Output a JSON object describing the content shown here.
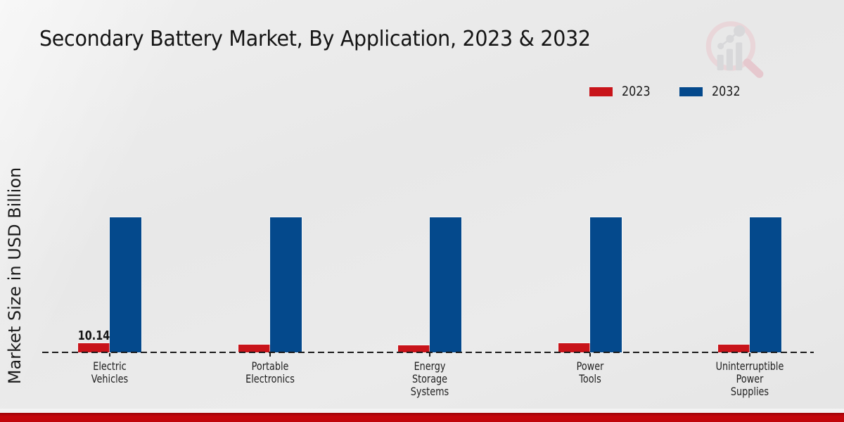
{
  "title": "Secondary Battery Market, By Application, 2023 & 2032",
  "y_axis_label": "Market Size in USD Billion",
  "legend": {
    "position": "top-right",
    "items": [
      {
        "label": "2023",
        "color": "#c8141a"
      },
      {
        "label": "2032",
        "color": "#04498c"
      }
    ]
  },
  "chart_data": {
    "type": "bar",
    "title": "Secondary Battery Market, By Application, 2023 & 2032",
    "xlabel": "",
    "ylabel": "Market Size in USD Billion",
    "categories": [
      "Electric Vehicles",
      "Portable Electronics",
      "Energy Storage Systems",
      "Power Tools",
      "Uninterruptible Power Supplies"
    ],
    "category_lines": [
      [
        "Electric",
        "Vehicles"
      ],
      [
        "Portable",
        "Electronics"
      ],
      [
        "Energy",
        "Storage",
        "Systems"
      ],
      [
        "Power",
        "Tools"
      ],
      [
        "Uninterruptible",
        "Power",
        "Supplies"
      ]
    ],
    "series": [
      {
        "name": "2023",
        "color": "#c8141a",
        "values": [
          10.14,
          8.5,
          8.2,
          10.6,
          9.0
        ]
      },
      {
        "name": "2032",
        "color": "#04498c",
        "values": [
          153,
          153,
          153,
          153,
          153
        ],
        "values_estimated": true
      }
    ],
    "data_labels": [
      {
        "series": "2023",
        "category": "Electric Vehicles",
        "value": "10.14"
      }
    ],
    "ylim": [
      0,
      160
    ],
    "grid": false,
    "baseline_style": "dashed",
    "legend_position": "top-right"
  },
  "branding": {
    "watermark": "market-research-future-logo",
    "bottom_bar_color": "#c5060c",
    "background_color": "#e9e9e9"
  }
}
